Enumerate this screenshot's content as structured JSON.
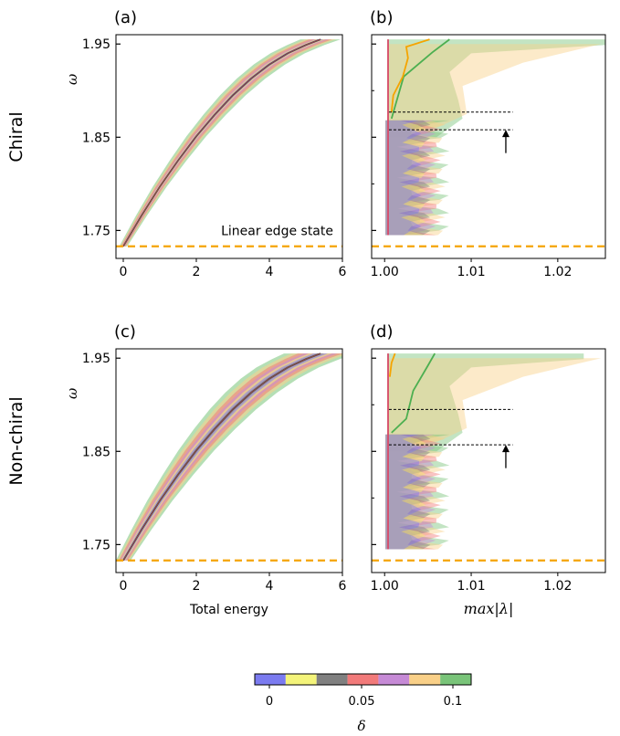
{
  "colors": {
    "linear_edge": "#f5a400",
    "frame": "#000000",
    "delta_palette": [
      "#7b7bf0",
      "#f4f47a",
      "#808080",
      "#f27a7a",
      "#c68ad6",
      "#f9d088",
      "#79c479"
    ]
  },
  "row_labels": [
    "Chiral",
    "Non-chiral"
  ],
  "colorbar": {
    "tick_labels": [
      "0",
      "0.05",
      "0.1"
    ],
    "label": "δ"
  },
  "chart_data": [
    {
      "panel": "(a)",
      "type": "line",
      "ylabel": "ω",
      "xlabel": "",
      "xlim": [
        -0.2,
        6.0
      ],
      "ylim": [
        1.72,
        1.96
      ],
      "xticks": [
        "0",
        "2",
        "4",
        "6"
      ],
      "yticks": [
        "1.75",
        "1.85",
        "1.95"
      ],
      "annotation": "Linear edge state",
      "reference_line": {
        "y": 1.733,
        "style": "dashed"
      },
      "series": [
        {
          "x": [
            0,
            0.5,
            1,
            1.5,
            2,
            2.5,
            3,
            3.5,
            4,
            4.5,
            5,
            5.4
          ],
          "y": [
            1.733,
            1.766,
            1.797,
            1.825,
            1.851,
            1.874,
            1.895,
            1.913,
            1.928,
            1.94,
            1.949,
            1.955
          ]
        }
      ]
    },
    {
      "panel": "(b)",
      "type": "line",
      "xlabel": "",
      "xlim": [
        0.9985,
        1.0255
      ],
      "ylim": [
        1.72,
        1.96
      ],
      "xticks": [
        "1.00",
        "1.01",
        "1.02"
      ],
      "reference_line": {
        "y": 1.733,
        "style": "dashed"
      },
      "thresholds": [
        1.877,
        1.858
      ],
      "arrow": {
        "x": 1.014,
        "y_from": 1.833,
        "y_to": 1.858
      },
      "series": [
        {
          "x": [
            1.0022,
            1.0055,
            1.0075
          ],
          "y": [
            1.915,
            1.941,
            1.955
          ]
        },
        {
          "x": [
            1.0008,
            1.001,
            1.0021,
            1.0027,
            1.0025,
            1.0052
          ],
          "y": [
            1.877,
            1.895,
            1.915,
            1.935,
            1.947,
            1.955
          ]
        }
      ]
    },
    {
      "panel": "(c)",
      "type": "line",
      "ylabel": "ω",
      "xlabel": "Total energy",
      "xlim": [
        -0.2,
        6.0
      ],
      "ylim": [
        1.72,
        1.96
      ],
      "xticks": [
        "0",
        "2",
        "4",
        "6"
      ],
      "yticks": [
        "1.75",
        "1.85",
        "1.95"
      ],
      "reference_line": {
        "y": 1.733,
        "style": "dashed"
      },
      "series": [
        {
          "x": [
            0,
            0.5,
            1,
            1.5,
            2,
            2.5,
            3,
            3.5,
            4,
            4.5,
            5,
            5.4
          ],
          "y": [
            1.733,
            1.766,
            1.797,
            1.825,
            1.851,
            1.874,
            1.895,
            1.913,
            1.928,
            1.94,
            1.949,
            1.955
          ]
        }
      ]
    },
    {
      "panel": "(d)",
      "type": "line",
      "xlabel": "max|λ|",
      "xlim": [
        0.9985,
        1.0255
      ],
      "ylim": [
        1.72,
        1.96
      ],
      "xticks": [
        "1.00",
        "1.01",
        "1.02"
      ],
      "reference_line": {
        "y": 1.733,
        "style": "dashed"
      },
      "thresholds": [
        1.895,
        1.857
      ],
      "arrow": {
        "x": 1.014,
        "y_from": 1.832,
        "y_to": 1.857
      },
      "series": [
        {
          "x": [
            1.0025,
            1.0033,
            1.005,
            1.0058
          ],
          "y": [
            1.885,
            1.915,
            1.942,
            1.955
          ]
        },
        {
          "x": [
            1.0006,
            1.0008,
            1.0012
          ],
          "y": [
            1.93,
            1.945,
            1.955
          ]
        }
      ]
    }
  ]
}
